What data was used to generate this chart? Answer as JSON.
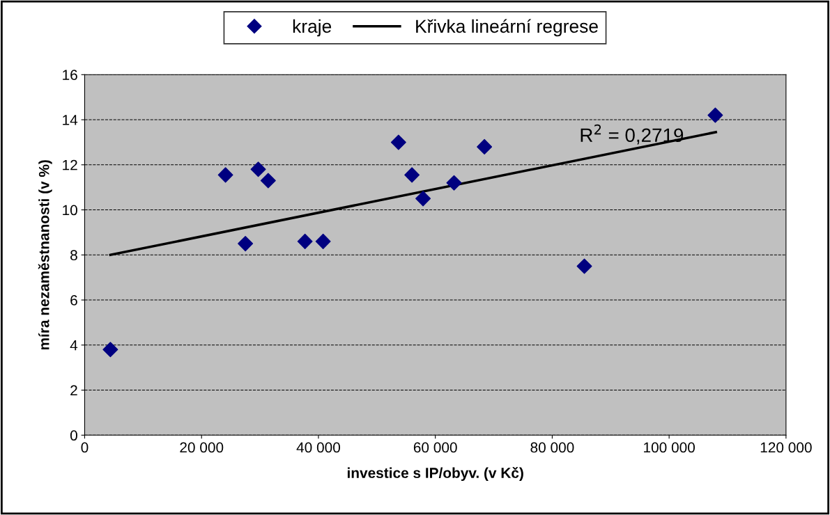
{
  "chart_data": {
    "type": "scatter",
    "xlabel": "investice s IP/obyv. (v Kč)",
    "ylabel": "míra nezaměstnanosti (v %)",
    "x": [
      4400,
      24100,
      27500,
      29700,
      31400,
      37700,
      40800,
      53700,
      56000,
      57900,
      63200,
      68400,
      85500,
      107900
    ],
    "series": [
      {
        "name": "kraje",
        "color": "#000080",
        "marker": "diamond",
        "values": [
          3.8,
          11.55,
          8.5,
          11.8,
          11.3,
          8.6,
          8.6,
          13.0,
          11.55,
          10.5,
          11.2,
          12.8,
          7.5,
          14.2
        ]
      },
      {
        "name": "Křivka lineární regrese",
        "color": "#000000",
        "type": "line",
        "marker": "none",
        "line_style": "solid",
        "x": [
          4400,
          108000
        ],
        "values": [
          8.0,
          13.45
        ]
      }
    ],
    "annotations": [
      "R$^{2}$ = 0,2719"
    ],
    "xlim": [
      0,
      120000
    ],
    "ylim": [
      0,
      16
    ],
    "xticks": [
      0,
      {
        "value": 20000,
        "label": "20 000"
      },
      {
        "value": 40000,
        "label": "40 000"
      },
      {
        "value": 60000,
        "label": "60 000"
      },
      {
        "value": 80000,
        "label": "80 000"
      },
      {
        "value": 100000,
        "label": "100 000"
      },
      {
        "value": 120000,
        "label": "120 000"
      }
    ],
    "yticks": [
      0,
      2,
      4,
      6,
      8,
      10,
      12,
      14,
      16
    ],
    "grid": "y",
    "legend": "top"
  }
}
